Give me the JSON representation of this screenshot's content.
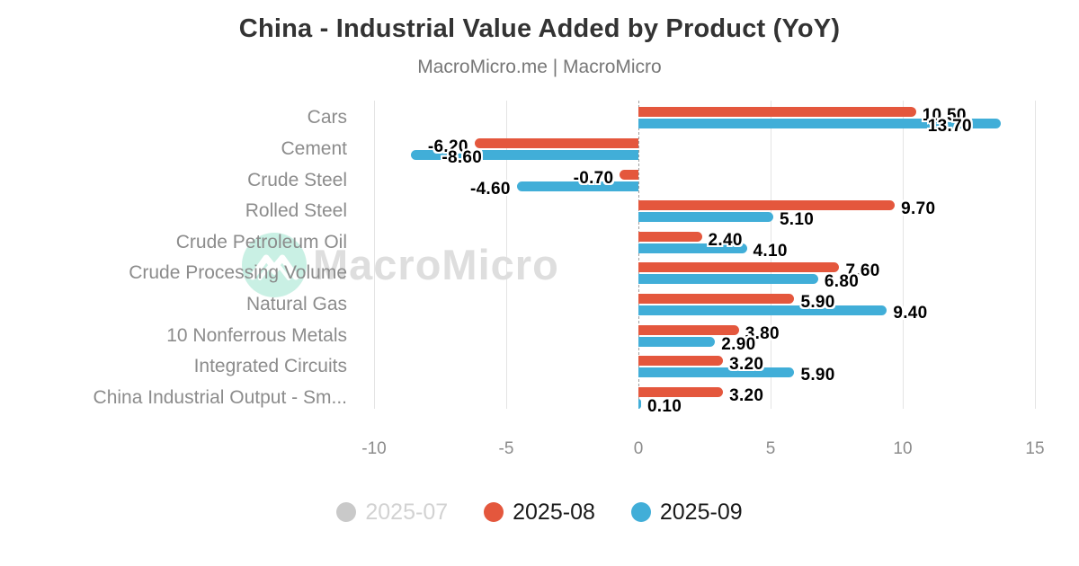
{
  "title": "China - Industrial Value Added by Product (YoY)",
  "subtitle": "MacroMicro.me | MacroMicro",
  "watermark": {
    "brand": "MacroMicro"
  },
  "chart_data": {
    "type": "bar",
    "orientation": "horizontal",
    "title": "China - Industrial Value Added by Product (YoY)",
    "subtitle": "MacroMicro.me | MacroMicro",
    "categories": [
      "Cars",
      "Cement",
      "Crude Steel",
      "Rolled Steel",
      "Crude Petroleum Oil",
      "Crude Processing Volume",
      "Natural Gas",
      "10 Nonferrous Metals",
      "Integrated Circuits",
      "China Industrial Output - Sm..."
    ],
    "series": [
      {
        "name": "2025-07",
        "color": "#c9c9c9",
        "visible": false,
        "values": []
      },
      {
        "name": "2025-08",
        "color": "#e4573d",
        "visible": true,
        "values": [
          10.5,
          -6.2,
          -0.7,
          9.7,
          2.4,
          7.6,
          5.9,
          3.8,
          3.2,
          3.2
        ]
      },
      {
        "name": "2025-09",
        "color": "#41aed8",
        "visible": true,
        "values": [
          13.7,
          -8.6,
          -4.6,
          5.1,
          4.1,
          6.8,
          9.4,
          2.9,
          5.9,
          0.1
        ]
      }
    ],
    "value_label_decimals": 2,
    "xticks": [
      -10,
      -5,
      0,
      5,
      10,
      15
    ],
    "xlim": [
      -12.7,
      15.3
    ],
    "grid": true,
    "zero_line": "dashed",
    "legend_position": "bottom",
    "colors": {
      "grid": "#e4e4e4",
      "zero_line": "#9e9e9e",
      "tick_label": "#8c8c8c",
      "category_label": "#8c8c8c",
      "data_label": "#000000",
      "title": "#333333",
      "subtitle": "#777777",
      "legend_label": "#1a1a1a",
      "legend_hidden_label": "#d2d2d2",
      "watermark_text": "#dedede",
      "watermark_circle": "#c9f0e4",
      "background": "#ffffff"
    }
  }
}
